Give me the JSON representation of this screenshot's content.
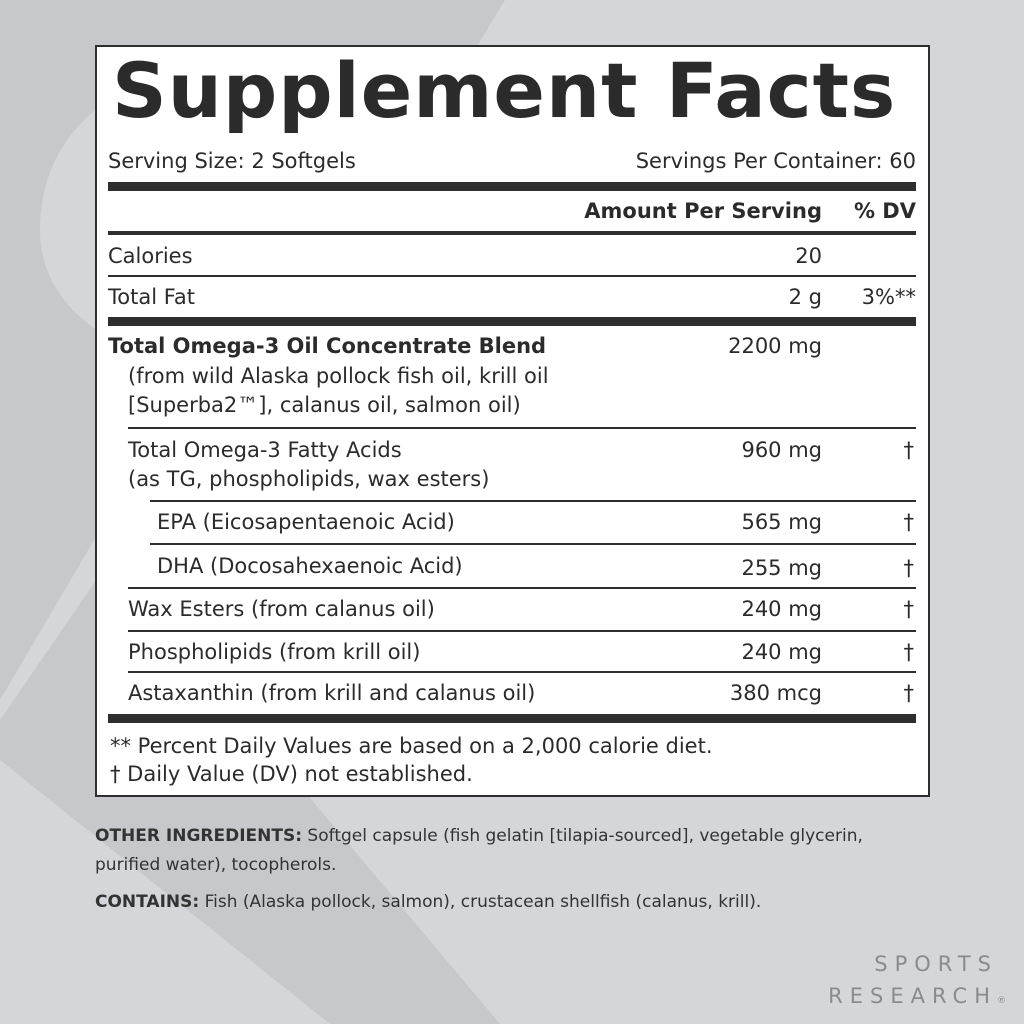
{
  "label": {
    "title": "Supplement Facts",
    "serving_size": "Serving Size: 2 Softgels",
    "servings_per_container": "Servings Per Container: 60",
    "header_amount": "Amount Per Serving",
    "header_dv": "% DV",
    "rows": [
      {
        "name": "Calories",
        "amount": "20",
        "dv": ""
      },
      {
        "name": "Total Fat",
        "amount": "2 g",
        "dv": "3%**"
      },
      {
        "name": "Total Omega-3 Oil Concentrate Blend",
        "sub1": "(from wild Alaska pollock fish oil, krill oil",
        "sub2": "[Superba2™], calanus oil, salmon oil)",
        "amount": "2200 mg",
        "dv": ""
      },
      {
        "name": "Total Omega-3 Fatty Acids",
        "sub1": "(as TG, phospholipids, wax esters)",
        "amount": "960 mg",
        "dv": "†"
      },
      {
        "name": "EPA (Eicosapentaenoic Acid)",
        "amount": "565 mg",
        "dv": "†"
      },
      {
        "name": "DHA (Docosahexaenoic Acid)",
        "amount": "255 mg",
        "dv": "†"
      },
      {
        "name": "Wax Esters (from calanus oil)",
        "amount": "240 mg",
        "dv": "†"
      },
      {
        "name": "Phospholipids (from krill oil)",
        "amount": "240 mg",
        "dv": "†"
      },
      {
        "name": "Astaxanthin (from krill and calanus oil)",
        "amount": "380 mcg",
        "dv": "†"
      }
    ],
    "footnote1": "** Percent Daily Values are based on a 2,000 calorie diet.",
    "footnote2": "†  Daily Value (DV) not established."
  },
  "other_ingredients": {
    "label": "OTHER INGREDIENTS:",
    "text": " Softgel capsule (fish gelatin [tilapia-sourced], vegetable glycerin, purified water), tocopherols."
  },
  "contains": {
    "label": "CONTAINS:",
    "text": " Fish (Alaska pollock, salmon), crustacean shellfish (calanus, krill)."
  },
  "brand": {
    "line1": "SPORTS",
    "line2": "RESEARCH",
    "mark": "®"
  },
  "colors": {
    "background": "#d5d6da",
    "watermark": "#c6c7ca",
    "ink": "#2b2b2b",
    "brand": "#8a8b8e"
  }
}
